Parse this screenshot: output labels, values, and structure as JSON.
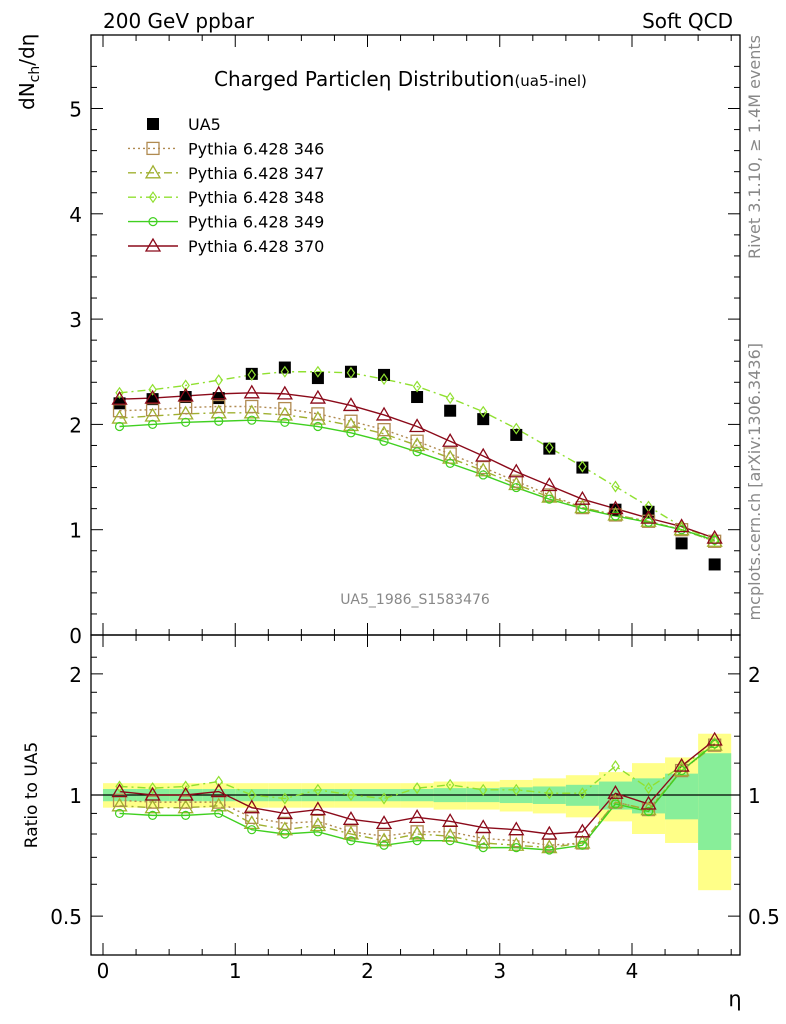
{
  "header": {
    "left": "200 GeV ppbar",
    "right": "Soft QCD"
  },
  "side_text": {
    "rivet": "Rivet 3.1.10, ≥ 1.4M events",
    "mcplots": "mcplots.cern.ch [arXiv:1306.3436]"
  },
  "watermark": "UA5_1986_S1583476",
  "colors": {
    "data": "#000000",
    "p346": "#b08a50",
    "p347": "#a0b030",
    "p348": "#90e030",
    "p349": "#40d020",
    "p370": "#8b0a1a",
    "band_inner": "#88ee99",
    "band_outer": "#ffff88"
  },
  "chart_data": [
    {
      "type": "scatter",
      "title": "Charged Particle",
      "title_eta": "η",
      "title_rest": " Distribution",
      "title_sub": "(ua5-inel)",
      "ylabel_main": "dN",
      "ylabel_sub": "ch",
      "ylabel_tail": "/dη",
      "ylim": [
        0,
        5.7
      ],
      "xlim": [
        -0.1,
        4.85
      ],
      "yticks": [
        "0",
        "1",
        "2",
        "3",
        "4",
        "5"
      ],
      "x": [
        0.125,
        0.375,
        0.625,
        0.875,
        1.125,
        1.375,
        1.625,
        1.875,
        2.125,
        2.375,
        2.625,
        2.875,
        3.125,
        3.375,
        3.625,
        3.875,
        4.125,
        4.375,
        4.625
      ],
      "series": [
        {
          "name": "UA5",
          "key": "ua5",
          "marker": "square-filled",
          "y": [
            2.2,
            2.24,
            2.26,
            2.25,
            2.48,
            2.54,
            2.44,
            2.5,
            2.47,
            2.26,
            2.13,
            2.05,
            1.9,
            1.77,
            1.59,
            1.19,
            1.17,
            0.87,
            0.67
          ]
        },
        {
          "name": "Pythia 6.428 346",
          "key": "p346",
          "marker": "square-open",
          "dash": "2,3",
          "y": [
            2.13,
            2.14,
            2.16,
            2.17,
            2.17,
            2.15,
            2.1,
            2.03,
            1.95,
            1.84,
            1.72,
            1.59,
            1.46,
            1.33,
            1.21,
            1.14,
            1.08,
            1.0,
            0.89
          ]
        },
        {
          "name": "Pythia 6.428 347",
          "key": "p347",
          "marker": "triangle-open",
          "dash": "8,4,2,4",
          "y": [
            2.06,
            2.08,
            2.1,
            2.11,
            2.11,
            2.09,
            2.05,
            1.99,
            1.91,
            1.8,
            1.68,
            1.56,
            1.43,
            1.31,
            1.21,
            1.14,
            1.08,
            1.0,
            0.89
          ]
        },
        {
          "name": "Pythia 6.428 348",
          "key": "p348",
          "marker": "diamond-open",
          "dash": "8,4,2,4",
          "y": [
            2.3,
            2.33,
            2.37,
            2.42,
            2.47,
            2.5,
            2.5,
            2.49,
            2.43,
            2.36,
            2.25,
            2.12,
            1.96,
            1.78,
            1.6,
            1.41,
            1.22,
            1.03,
            0.9
          ]
        },
        {
          "name": "Pythia 6.428 349",
          "key": "p349",
          "marker": "circle-open",
          "dash": "",
          "y": [
            1.98,
            2.0,
            2.02,
            2.03,
            2.04,
            2.02,
            1.98,
            1.92,
            1.84,
            1.74,
            1.63,
            1.52,
            1.4,
            1.29,
            1.2,
            1.13,
            1.07,
            1.0,
            0.9
          ]
        },
        {
          "name": "Pythia 6.428 370",
          "key": "p370",
          "marker": "triangle-open",
          "dash": "",
          "y": [
            2.24,
            2.25,
            2.27,
            2.29,
            2.3,
            2.29,
            2.25,
            2.18,
            2.09,
            1.98,
            1.84,
            1.7,
            1.55,
            1.42,
            1.29,
            1.2,
            1.11,
            1.03,
            0.92
          ]
        }
      ]
    },
    {
      "type": "scatter",
      "ylabel": "Ratio to UA5",
      "xlabel": "η",
      "yscale": "log",
      "ylim": [
        0.4,
        2.45
      ],
      "yticks": [
        {
          "v": 0.5,
          "label": "0.5"
        },
        {
          "v": 1,
          "label": "1"
        },
        {
          "v": 2,
          "label": "2"
        }
      ],
      "xticks": [
        "0",
        "1",
        "2",
        "3",
        "4"
      ],
      "x_edges": [
        0,
        0.25,
        0.5,
        0.75,
        1.0,
        1.25,
        1.5,
        1.75,
        2.0,
        2.25,
        2.5,
        2.75,
        3.0,
        3.25,
        3.5,
        3.75,
        4.0,
        4.25,
        4.5,
        4.75
      ],
      "band_inner": [
        0.035,
        0.035,
        0.035,
        0.035,
        0.035,
        0.035,
        0.035,
        0.035,
        0.035,
        0.035,
        0.04,
        0.04,
        0.045,
        0.05,
        0.06,
        0.08,
        0.1,
        0.13,
        0.27
      ],
      "band_outer": [
        0.07,
        0.07,
        0.07,
        0.07,
        0.07,
        0.07,
        0.07,
        0.07,
        0.07,
        0.07,
        0.08,
        0.08,
        0.09,
        0.1,
        0.12,
        0.14,
        0.2,
        0.24,
        0.42
      ],
      "series": [
        {
          "key": "p346",
          "y": [
            0.97,
            0.96,
            0.96,
            0.96,
            0.88,
            0.85,
            0.86,
            0.81,
            0.79,
            0.81,
            0.81,
            0.78,
            0.77,
            0.75,
            0.76,
            0.96,
            0.92,
            1.15,
            1.33
          ]
        },
        {
          "key": "p347",
          "y": [
            0.94,
            0.93,
            0.93,
            0.94,
            0.85,
            0.82,
            0.84,
            0.8,
            0.77,
            0.8,
            0.79,
            0.76,
            0.75,
            0.74,
            0.76,
            0.96,
            0.92,
            1.15,
            1.33
          ]
        },
        {
          "key": "p348",
          "y": [
            1.05,
            1.04,
            1.05,
            1.08,
            1.0,
            0.98,
            1.03,
            1.0,
            0.98,
            1.04,
            1.06,
            1.03,
            1.03,
            1.01,
            1.01,
            1.18,
            1.04,
            1.18,
            1.34
          ]
        },
        {
          "key": "p349",
          "y": [
            0.9,
            0.89,
            0.89,
            0.9,
            0.82,
            0.8,
            0.81,
            0.77,
            0.75,
            0.77,
            0.77,
            0.74,
            0.74,
            0.73,
            0.75,
            0.95,
            0.91,
            1.15,
            1.34
          ]
        },
        {
          "key": "p370",
          "y": [
            1.02,
            1.0,
            1.0,
            1.02,
            0.93,
            0.9,
            0.92,
            0.87,
            0.85,
            0.88,
            0.86,
            0.83,
            0.82,
            0.8,
            0.81,
            1.01,
            0.95,
            1.18,
            1.37
          ]
        }
      ]
    }
  ]
}
